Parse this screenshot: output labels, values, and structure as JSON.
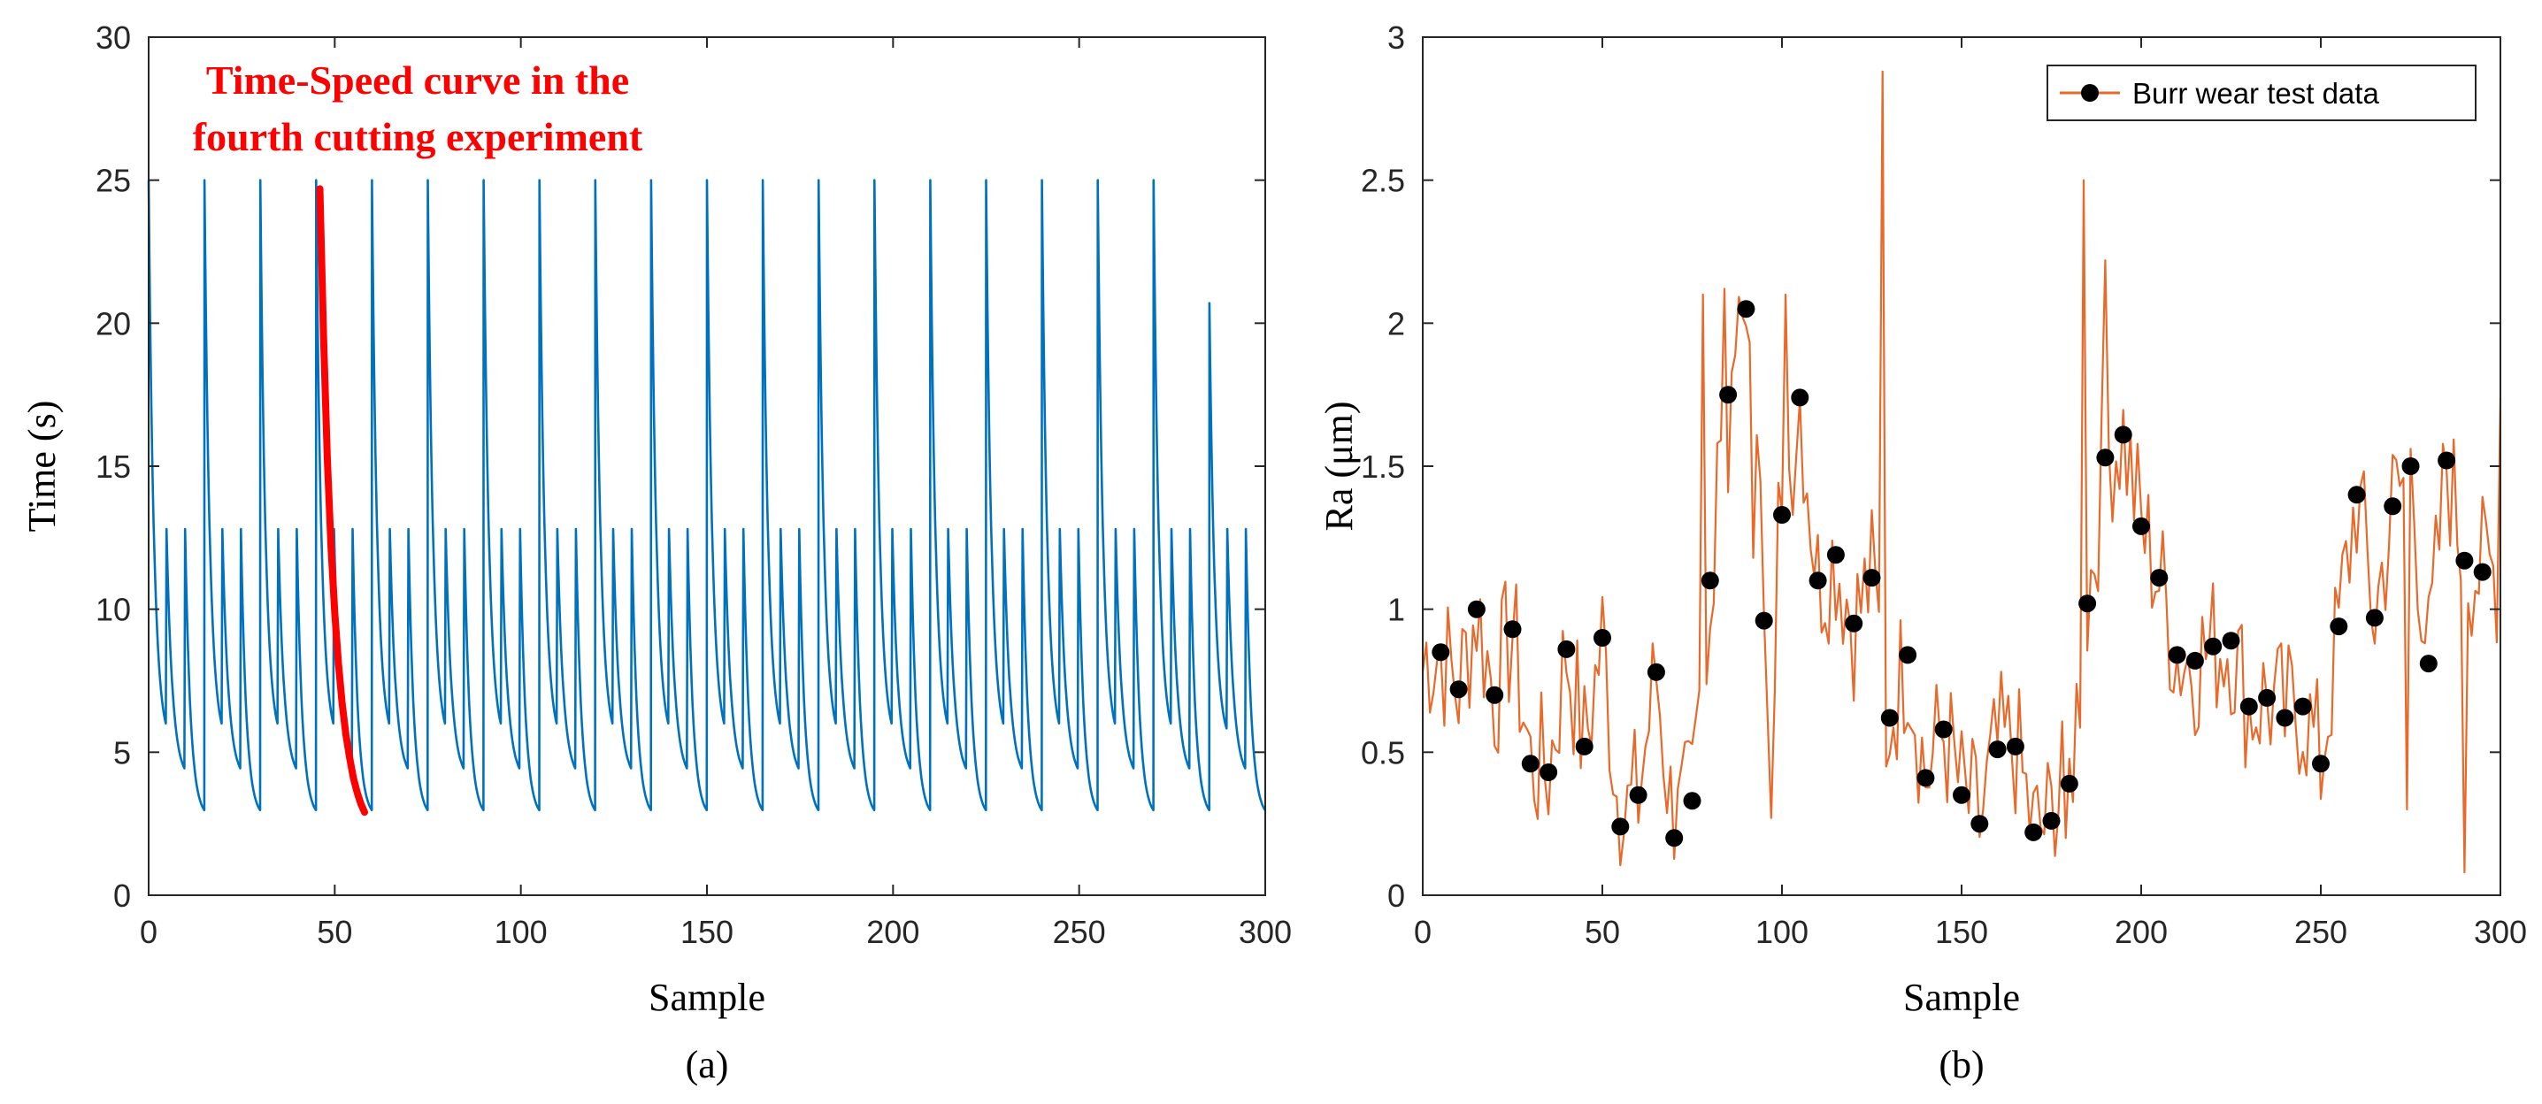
{
  "chart_data": [
    {
      "panel": "a",
      "type": "line",
      "caption": "(a)",
      "xlabel": "Sample",
      "ylabel": "Time (s)",
      "xlim": [
        0,
        300
      ],
      "ylim": [
        0,
        30
      ],
      "xticks": [
        0,
        50,
        100,
        150,
        200,
        250,
        300
      ],
      "yticks": [
        0,
        5,
        10,
        15,
        20,
        25,
        30
      ],
      "grid": false,
      "series_color": "#0072bd",
      "annotation": {
        "line1": "Time-Speed curve in the",
        "line2": "fourth cutting experiment",
        "color": "#ff0000"
      },
      "series": [
        {
          "name": "Time",
          "description": "repeating decay cycles (period ~15 samples), each starting at a peak and decaying to ~2.7 s; intermediate restarts at ~12.8 s",
          "cycle_starts": [
            0,
            15,
            30,
            45,
            60,
            75,
            90,
            105,
            120,
            135,
            150,
            165,
            180,
            195,
            210,
            225,
            240,
            255,
            270,
            285
          ],
          "peaks": [
            25,
            25,
            25,
            25,
            25,
            25,
            25,
            25,
            25,
            25,
            25,
            25,
            25,
            25,
            25,
            25,
            25,
            25,
            25,
            20.7
          ],
          "secondary_peak": 12.8,
          "floor": 2.7
        }
      ],
      "highlight_curve": {
        "name": "fourth cutting experiment",
        "x": [
          46,
          47,
          48,
          49,
          50,
          51,
          52,
          53,
          54,
          55,
          56,
          57,
          58
        ],
        "y": [
          24.7,
          19.5,
          15.3,
          12.2,
          9.9,
          8.1,
          6.7,
          5.6,
          4.8,
          4.1,
          3.6,
          3.2,
          2.9
        ]
      }
    },
    {
      "panel": "b",
      "type": "line+scatter",
      "caption": "(b)",
      "xlabel": "Sample",
      "ylabel": "Ra (μm)",
      "xlim": [
        0,
        300
      ],
      "ylim": [
        0,
        3
      ],
      "xticks": [
        0,
        50,
        100,
        150,
        200,
        250,
        300
      ],
      "yticks": [
        0,
        0.5,
        1,
        1.5,
        2,
        2.5,
        3
      ],
      "grid": false,
      "line_color": "#e8692a",
      "marker_color": "#000000",
      "legend": {
        "label": "Burr wear test data",
        "placement": "top-right"
      },
      "markers": {
        "x": [
          5,
          10,
          15,
          20,
          25,
          30,
          35,
          40,
          45,
          50,
          55,
          60,
          65,
          70,
          75,
          80,
          85,
          90,
          95,
          100,
          105,
          110,
          115,
          120,
          125,
          130,
          135,
          140,
          145,
          150,
          155,
          160,
          165,
          170,
          175,
          180,
          185,
          190,
          195,
          200,
          205,
          210,
          215,
          220,
          225,
          230,
          235,
          240,
          245,
          250,
          255,
          260,
          265,
          270,
          275,
          280,
          285,
          290,
          295
        ],
        "y": [
          0.85,
          0.72,
          1.0,
          0.7,
          0.93,
          0.46,
          0.43,
          0.86,
          0.52,
          0.9,
          0.24,
          0.35,
          0.78,
          0.2,
          0.33,
          1.1,
          1.75,
          2.05,
          0.96,
          1.33,
          1.74,
          1.1,
          1.19,
          0.95,
          1.11,
          0.62,
          0.84,
          0.41,
          0.58,
          0.35,
          0.25,
          0.51,
          0.52,
          0.22,
          0.26,
          0.39,
          1.02,
          1.53,
          1.61,
          1.29,
          1.11,
          0.84,
          0.82,
          0.87,
          0.89,
          0.66,
          0.69,
          0.62,
          0.66,
          0.46,
          0.94,
          1.4,
          0.97,
          1.36,
          1.5,
          0.81,
          1.52,
          1.17,
          1.13
        ]
      }
    }
  ]
}
